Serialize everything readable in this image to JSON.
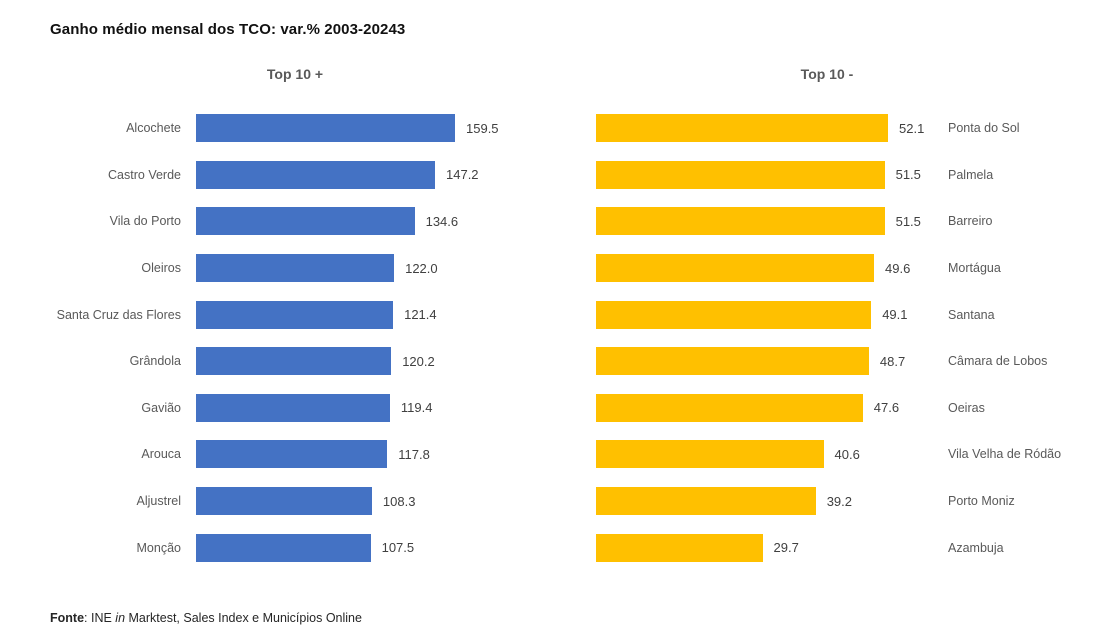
{
  "title": "Ganho médio mensal dos TCO: var.% 2003-20243",
  "source": {
    "bold": "Fonte",
    "pre_italic": ": INE ",
    "italic": "in",
    "post_italic": " Marktest, Sales Index e Municípios Online"
  },
  "chart_data": [
    {
      "type": "bar",
      "orientation": "horizontal",
      "title": "Top 10 +",
      "bar_color": "#4472C4",
      "label_color": "#595959",
      "value_label_color": "#404040",
      "legend": "none",
      "grid": false,
      "axis_hidden": true,
      "xlim": [
        0,
        165
      ],
      "categories": [
        "Alcochete",
        "Castro Verde",
        "Vila do Porto",
        "Oleiros",
        "Santa Cruz das Flores",
        "Grândola",
        "Gavião",
        "Arouca",
        "Aljustrel",
        "Monção"
      ],
      "values": [
        159.5,
        147.2,
        134.6,
        122.0,
        121.4,
        120.2,
        119.4,
        117.8,
        108.3,
        107.5
      ],
      "value_labels": [
        "159.5",
        "147.2",
        "134.6",
        "122.0",
        "121.4",
        "120.2",
        "119.4",
        "117.8",
        "108.3",
        "107.5"
      ],
      "category_label_side": "left",
      "value_label_position": "outside-end"
    },
    {
      "type": "bar",
      "orientation": "horizontal",
      "title": "Top 10 -",
      "bar_color": "#FFC000",
      "label_color": "#595959",
      "value_label_color": "#404040",
      "legend": "none",
      "grid": false,
      "axis_hidden": true,
      "xlim": [
        0,
        55
      ],
      "categories": [
        "Ponta do Sol",
        "Palmela",
        "Barreiro",
        "Mortágua",
        "Santana",
        "Câmara de Lobos",
        "Oeiras",
        "Vila Velha de Ródão",
        "Porto Moniz",
        "Azambuja"
      ],
      "values": [
        52.1,
        51.5,
        51.5,
        49.6,
        49.1,
        48.7,
        47.6,
        40.6,
        39.2,
        29.7
      ],
      "value_labels": [
        "52.1",
        "51.5",
        "51.5",
        "49.6",
        "49.1",
        "48.7",
        "47.6",
        "40.6",
        "39.2",
        "29.7"
      ],
      "category_label_side": "right",
      "value_label_position": "outside-end"
    }
  ]
}
